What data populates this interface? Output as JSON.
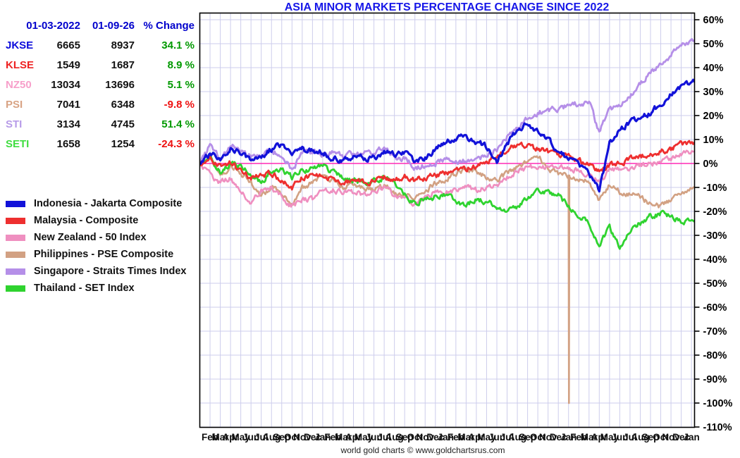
{
  "title": "ASIA MINOR MARKETS PERCENTAGE CHANGE SINCE 2022",
  "footer": "world gold charts © www.goldchartsrus.com",
  "table": {
    "headers": [
      "01-03-2022",
      "01-09-26",
      "% Change"
    ],
    "rows": [
      {
        "label": "JKSE",
        "color": "#0b0bdb",
        "start": "6665",
        "end": "8937",
        "change": "34.1 %",
        "change_color": "#009900"
      },
      {
        "label": "KLSE",
        "color": "#ee2222",
        "start": "1549",
        "end": "1687",
        "change": "8.9 %",
        "change_color": "#009900"
      },
      {
        "label": "NZ50",
        "color": "#f79fca",
        "start": "13034",
        "end": "13696",
        "change": "5.1 %",
        "change_color": "#009900"
      },
      {
        "label": "PSI",
        "color": "#d8a384",
        "start": "7041",
        "end": "6348",
        "change": "-9.8 %",
        "change_color": "#ee1111"
      },
      {
        "label": "STI",
        "color": "#b79be8",
        "start": "3134",
        "end": "4745",
        "change": "51.4 %",
        "change_color": "#009900"
      },
      {
        "label": "SETI",
        "color": "#3fdd3f",
        "start": "1658",
        "end": "1254",
        "change": "-24.3 %",
        "change_color": "#ee1111"
      }
    ]
  },
  "legend": {
    "items": [
      {
        "label": "Indonesia - Jakarta Composite",
        "color": "#1212d9"
      },
      {
        "label": "Malaysia - Composite",
        "color": "#ee2f2f"
      },
      {
        "label": "New Zealand - 50 Index",
        "color": "#ef8fc0"
      },
      {
        "label": "Philippines - PSE Composite",
        "color": "#d2a183"
      },
      {
        "label": "Singapore - Straits Times Index",
        "color": "#b58fe8"
      },
      {
        "label": "Thailand - SET Index",
        "color": "#2fd32f"
      }
    ]
  },
  "chart_data": {
    "type": "line",
    "title": "ASIA MINOR MARKETS PERCENTAGE CHANGE SINCE 2022",
    "x_start": "2022-01-03",
    "x_end": "2026-01-09",
    "x_months_total": 48.3,
    "y_unit": "percent change",
    "ylim": [
      -110,
      63
    ],
    "grid": true,
    "grid_color": "#cdcdec",
    "zero_line_color": "#ff2ab5",
    "y_ticks": [
      "60%",
      "50%",
      "40%",
      "30%",
      "20%",
      "10%",
      "0%",
      "-10%",
      "-20%",
      "-30%",
      "-40%",
      "-50%",
      "-60%",
      "-70%",
      "-80%",
      "-90%",
      "-100%",
      "-110%"
    ],
    "y_tick_values": [
      60,
      50,
      40,
      30,
      20,
      10,
      0,
      -10,
      -20,
      -30,
      -40,
      -50,
      -60,
      -70,
      -80,
      -90,
      -100,
      -110
    ],
    "x_tick_labels": [
      "Feb",
      "Mar",
      "Apr",
      "May",
      "Jun",
      "Jul",
      "Aug",
      "Sep",
      "Oct",
      "Nov",
      "Dec",
      "Jan",
      "Feb",
      "Mar",
      "Apr",
      "May",
      "Jun",
      "Jul",
      "Aug",
      "Sep",
      "Oct",
      "Nov",
      "Dec",
      "Jan",
      "Feb",
      "Mar",
      "Apr",
      "May",
      "Jun",
      "Jul",
      "Aug",
      "Sep",
      "Oct",
      "Nov",
      "Dec",
      "Jan",
      "Feb",
      "Mar",
      "Apr",
      "May",
      "Jun",
      "Jul",
      "Aug",
      "Sep",
      "Oct",
      "Nov",
      "Dec",
      "Jan"
    ],
    "series": [
      {
        "id": "PSI",
        "name": "Philippines - PSE Composite",
        "color": "#d2a183",
        "width": 2.6,
        "monthly_pct": [
          0,
          3,
          -6,
          -2,
          -4,
          -8,
          -13,
          -10,
          -12,
          -17,
          -10,
          -8,
          -6,
          -7,
          -10,
          -9,
          -10,
          -11,
          -9,
          -12,
          -13,
          -15,
          -12,
          -8,
          -7,
          -4,
          -2,
          -3,
          -6,
          -7,
          -4,
          -1,
          1,
          3,
          -2,
          -4,
          -5,
          -6,
          -8,
          -16,
          -9,
          -12,
          -13,
          -14,
          -17,
          -18,
          -15,
          -12,
          -9.8
        ]
      },
      {
        "id": "NZ50",
        "name": "New Zealand - 50 Index",
        "color": "#ef8fc0",
        "width": 2.6,
        "monthly_pct": [
          0,
          -5,
          -8,
          -6,
          -12,
          -16,
          -12,
          -10,
          -14,
          -18,
          -15,
          -15,
          -11,
          -11,
          -12,
          -12,
          -13,
          -12,
          -10,
          -13,
          -14,
          -17,
          -14,
          -12,
          -12,
          -11,
          -10,
          -11,
          -10,
          -9,
          -6,
          -3,
          -2,
          -1,
          -2,
          -1,
          -2,
          -3,
          -5,
          -8,
          -3,
          -2,
          -2,
          -1,
          0,
          1,
          2,
          4,
          5.1
        ]
      },
      {
        "id": "SETI",
        "name": "Thailand - SET Index",
        "color": "#2fd32f",
        "width": 2.8,
        "monthly_pct": [
          0,
          2,
          -4,
          0,
          -1,
          -5,
          -8,
          -3,
          -2,
          -6,
          -3,
          -2,
          -1,
          -4,
          -6,
          -7,
          -8,
          -7,
          -6,
          -8,
          -13,
          -17,
          -15,
          -14,
          -13,
          -16,
          -17,
          -15,
          -16,
          -18,
          -20,
          -18,
          -14,
          -11,
          -12,
          -13,
          -18,
          -22,
          -25,
          -34,
          -27,
          -35,
          -28,
          -25,
          -22,
          -21,
          -22,
          -24,
          -24.3
        ]
      },
      {
        "id": "STI",
        "name": "Singapore - Straits Times Index",
        "color": "#b58fe8",
        "width": 2.8,
        "monthly_pct": [
          0,
          8,
          2,
          8,
          5,
          3,
          3,
          5,
          4,
          -3,
          4,
          5,
          4,
          5,
          3,
          4,
          4,
          5,
          6,
          3,
          2,
          -2,
          -1,
          0,
          2,
          1,
          1,
          1,
          4,
          6,
          11,
          15,
          19,
          21,
          22,
          23,
          24,
          25,
          26,
          13,
          22,
          25,
          28,
          33,
          38,
          42,
          45,
          49,
          51.4
        ]
      },
      {
        "id": "KLSE",
        "name": "Malaysia - Composite",
        "color": "#ee2f2f",
        "width": 2.8,
        "monthly_pct": [
          0,
          2,
          -1,
          0,
          -3,
          -6,
          -5,
          -4,
          -7,
          -10,
          -6,
          -5,
          -5,
          -6,
          -8,
          -7,
          -8,
          -7,
          -6,
          -7,
          -5,
          -7,
          -6,
          -5,
          -4,
          -2,
          -2,
          -1,
          0,
          4,
          6,
          8,
          7,
          6,
          5,
          4,
          3,
          1,
          0,
          -3,
          -1,
          0,
          2,
          3,
          4,
          5,
          6,
          8,
          8.9
        ]
      },
      {
        "id": "JKSE",
        "name": "Indonesia - Jakarta Composite",
        "color": "#1212d9",
        "width": 3.2,
        "monthly_pct": [
          0,
          4,
          2,
          6,
          4,
          1,
          3,
          6,
          8,
          3,
          6,
          5,
          5,
          2,
          1,
          3,
          2,
          2,
          5,
          4,
          5,
          1,
          2,
          6,
          9,
          10,
          11,
          9,
          7,
          1,
          8,
          14,
          17,
          13,
          10,
          5,
          2,
          -1,
          -4,
          -11,
          8,
          14,
          17,
          19,
          21,
          25,
          29,
          32,
          34.1
        ]
      }
    ],
    "annotations": [
      {
        "series": "PSI",
        "type": "vertical-spike",
        "month_index": 36,
        "spike_to": -100
      }
    ],
    "final_values": {
      "JKSE": 34.1,
      "KLSE": 8.9,
      "NZ50": 5.1,
      "PSI": -9.8,
      "STI": 51.4,
      "SETI": -24.3
    }
  }
}
